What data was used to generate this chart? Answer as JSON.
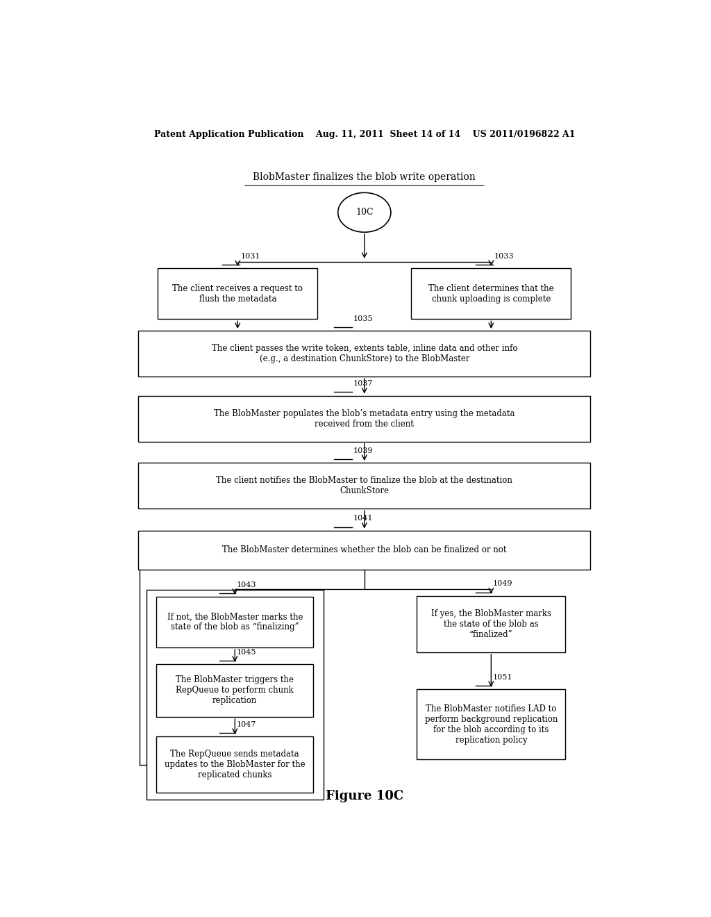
{
  "title": "BlobMaster finalizes the blob write operation",
  "header": "Patent Application Publication    Aug. 11, 2011  Sheet 14 of 14    US 2011/0196822 A1",
  "figure_label": "Figure 10C",
  "start_node": "10C",
  "background_color": "#ffffff",
  "font_size": 8.5,
  "header_font_size": 9,
  "title_font_size": 10
}
